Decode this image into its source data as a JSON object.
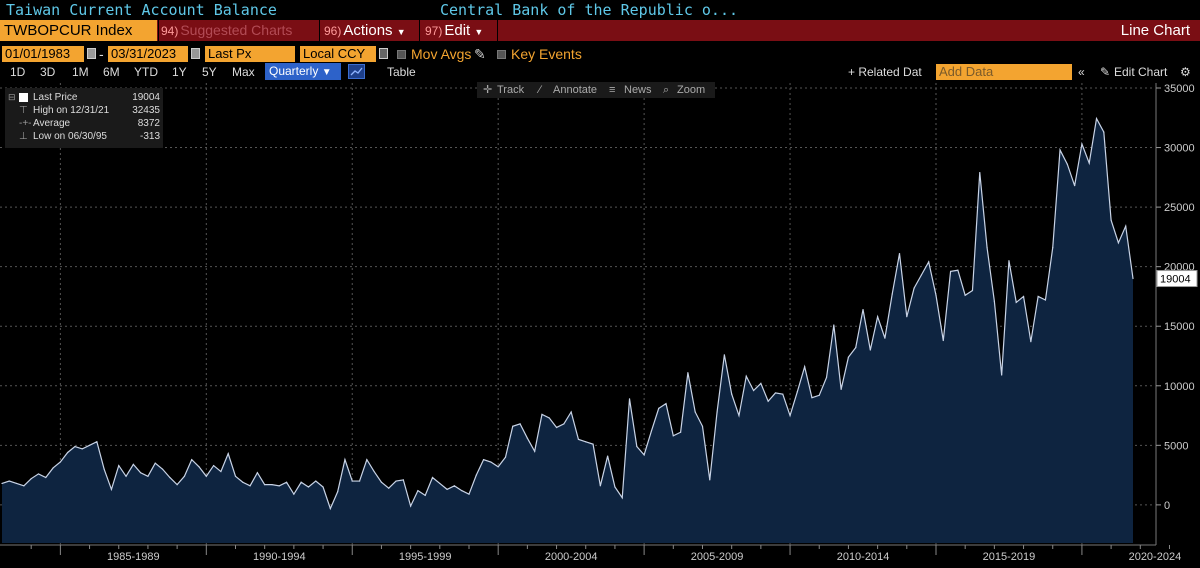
{
  "header": {
    "title": "Taiwan Current Account Balance",
    "source": "Central Bank of the Republic o..."
  },
  "toolbar": {
    "ticker": "TWBOPCUR Index",
    "suggested_num": "94)",
    "suggested": "Suggested Charts",
    "actions_num": "96)",
    "actions": "Actions",
    "edit_num": "97)",
    "edit": "Edit",
    "chart_type": "Line Chart"
  },
  "options": {
    "start_date": "01/01/1983",
    "dash": "-",
    "end_date": "03/31/2023",
    "price": "Last Px",
    "currency": "Local CCY",
    "mov_avgs": "Mov Avgs",
    "key_events": "Key Events"
  },
  "periods": {
    "items": [
      "1D",
      "3D",
      "1M",
      "6M",
      "YTD",
      "1Y",
      "5Y",
      "Max"
    ],
    "frequency": "Quarterly",
    "table": "Table",
    "related": "+ Related Dat",
    "add_data_placeholder": "Add Data",
    "edit_chart": "Edit Chart"
  },
  "tools": {
    "track": "Track",
    "annotate": "Annotate",
    "news": "News",
    "zoom": "Zoom"
  },
  "legend": {
    "last_label": "Last Price",
    "last_value": "19004",
    "high_label": "High on 12/31/21",
    "high_value": "32435",
    "avg_label": "Average",
    "avg_value": "8372",
    "low_label": "Low on 06/30/95",
    "low_value": "-313"
  },
  "colors": {
    "line": "#c8d3e6",
    "fill": "#0e2440",
    "accent_orange": "#f3a430",
    "toolbar_red": "#7a0e14",
    "title_cyan": "#5fc8e8"
  },
  "chart_data": {
    "type": "area",
    "start": "1983-Q1",
    "frequency": "quarterly",
    "x_tick_labels": [
      "1985-1989",
      "1990-1994",
      "1995-1999",
      "2000-2004",
      "2005-2009",
      "2010-2014",
      "2015-2019",
      "2020-2024"
    ],
    "y_ticks": [
      0,
      5000,
      10000,
      15000,
      20000,
      25000,
      30000,
      35000
    ],
    "y_tick_labels": [
      "0",
      "5000",
      "10000",
      "15000",
      "20000",
      "25000",
      "30000",
      "35000"
    ],
    "ylim": [
      -3200,
      35000
    ],
    "last_value_label": "19004",
    "grid": true,
    "series": [
      {
        "values": [
          1800,
          2000,
          1800,
          1600,
          2200,
          2600,
          2300,
          3100,
          3600,
          4400,
          4900,
          4700,
          5000,
          5300,
          3000,
          1300,
          3300,
          2400,
          3400,
          2700,
          2400,
          3500,
          3000,
          2300,
          1700,
          2400,
          3800,
          3200,
          2400,
          3300,
          2800,
          4300,
          2400,
          1900,
          1600,
          2700,
          1700,
          1700,
          1600,
          1900,
          900,
          1900,
          1500,
          2000,
          1500,
          -313,
          1100,
          3800,
          2000,
          2000,
          3800,
          2800,
          1900,
          1400,
          2000,
          2100,
          -100,
          1200,
          800,
          2300,
          1800,
          1300,
          1600,
          1200,
          900,
          2500,
          3800,
          3600,
          3200,
          4000,
          6600,
          6800,
          5600,
          4500,
          7600,
          7300,
          6500,
          6800,
          7800,
          5500,
          5300,
          5100,
          1600,
          4100,
          1500,
          600,
          8900,
          4900,
          4200,
          6200,
          8100,
          8500,
          5800,
          6100,
          11100,
          7800,
          6600,
          2100,
          7800,
          12600,
          9300,
          7500,
          10800,
          9600,
          10200,
          8700,
          9400,
          9300,
          7500,
          9500,
          11600,
          9000,
          9200,
          10700,
          15100,
          9700,
          12400,
          13200,
          16400,
          13000,
          15800,
          14000,
          17700,
          21100,
          15800,
          18200,
          19300,
          20400,
          17600,
          13800,
          19600,
          19700,
          17600,
          18000,
          27900,
          21600,
          17100,
          10900,
          20500,
          17000,
          17500,
          13700,
          17500,
          17200,
          21600,
          29800,
          28600,
          26800,
          30300,
          28700,
          32435,
          31300,
          23900,
          22000,
          23400,
          19004
        ]
      }
    ]
  }
}
